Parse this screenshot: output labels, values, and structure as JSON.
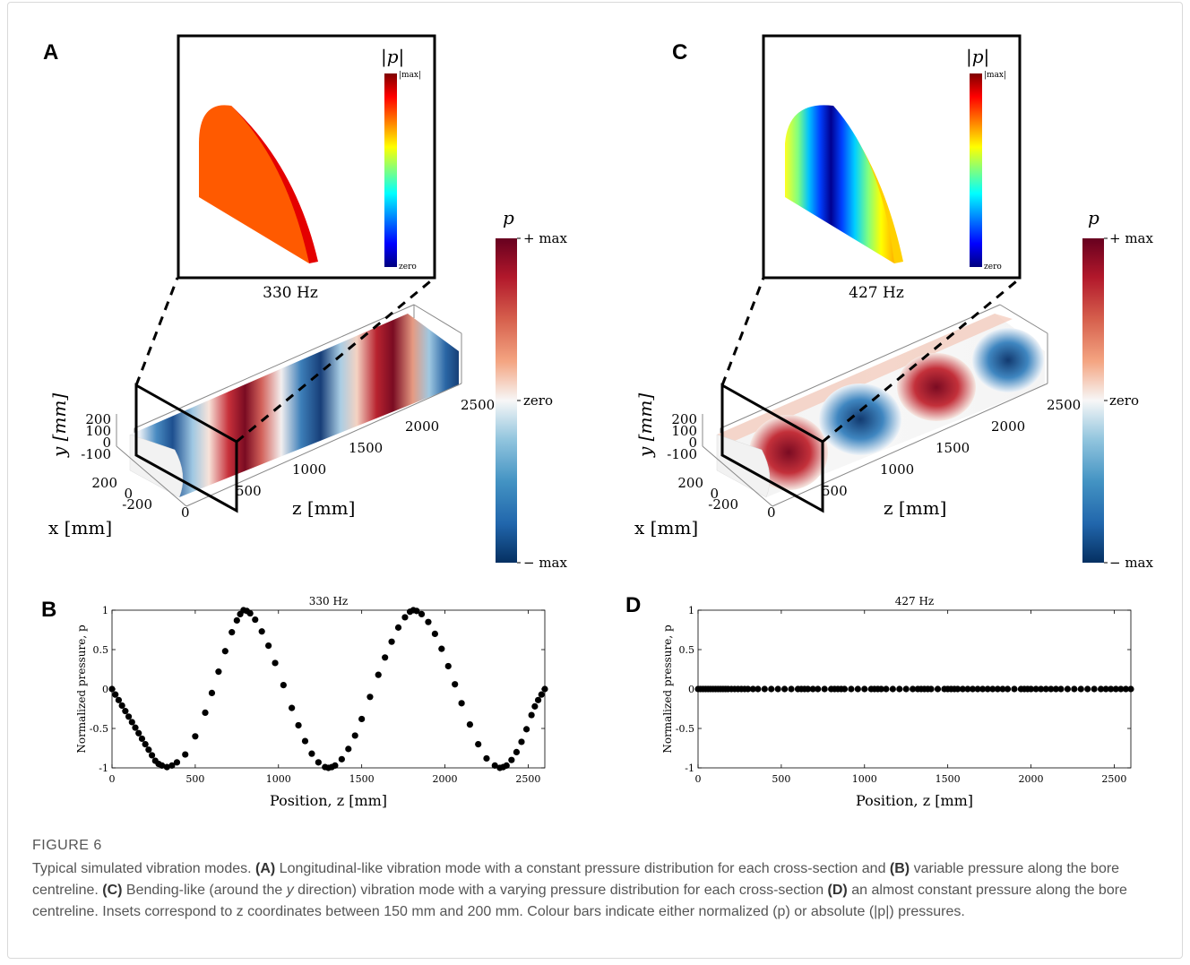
{
  "panel_letters": {
    "a": "A",
    "b": "B",
    "c": "C",
    "d": "D"
  },
  "inset_a": {
    "legend_title": "|p|",
    "legend_max": "|max|",
    "legend_min": "zero",
    "frequency": "330 Hz"
  },
  "inset_c": {
    "legend_title": "|p|",
    "legend_max": "|max|",
    "legend_min": "zero",
    "frequency": "427 Hz"
  },
  "model_axes": {
    "y_label": "y [mm]",
    "x_label": "x [mm]",
    "z_label": "z [mm]",
    "y_ticks": [
      "200",
      "100",
      "0",
      "-100"
    ],
    "x_ticks": [
      "200",
      "0",
      "-200"
    ],
    "z_ticks": [
      "0",
      "500",
      "1000",
      "1500",
      "2000",
      "2500"
    ]
  },
  "colorbar": {
    "title": "p",
    "max": "+ max",
    "mid": "zero",
    "min": "− max"
  },
  "colors": {
    "diverging": [
      "#053061",
      "#2166ac",
      "#4393c3",
      "#92c5de",
      "#f7f7f7",
      "#f4a582",
      "#d6604d",
      "#b2182b",
      "#67001f"
    ],
    "jet": [
      "#00007f",
      "#0000ff",
      "#007fff",
      "#00ffff",
      "#7fff7f",
      "#ffff00",
      "#ff7f00",
      "#ff0000",
      "#7f0000"
    ],
    "inset_a_fill": "#ff5a00"
  },
  "chart_data": [
    {
      "panel": "B",
      "type": "scatter",
      "title": "330 Hz",
      "xlabel": "Position, z [mm]",
      "ylabel": "Normalized pressure, p",
      "xlim": [
        0,
        2600
      ],
      "ylim": [
        -1,
        1
      ],
      "xticks": [
        0,
        500,
        1000,
        1500,
        2000,
        2500
      ],
      "yticks": [
        -1,
        -0.5,
        0,
        0.5,
        1
      ],
      "ytick_labels": [
        "-1",
        "-0.5",
        "0",
        "0.5",
        "1"
      ],
      "x": [
        0,
        20,
        40,
        60,
        80,
        100,
        120,
        140,
        160,
        180,
        200,
        220,
        240,
        260,
        280,
        300,
        330,
        360,
        390,
        440,
        500,
        560,
        600,
        640,
        680,
        720,
        750,
        770,
        790,
        810,
        830,
        860,
        900,
        940,
        980,
        1030,
        1080,
        1120,
        1160,
        1200,
        1240,
        1280,
        1300,
        1320,
        1340,
        1380,
        1420,
        1460,
        1500,
        1550,
        1600,
        1640,
        1680,
        1720,
        1760,
        1790,
        1810,
        1830,
        1860,
        1900,
        1940,
        1980,
        2020,
        2060,
        2100,
        2150,
        2200,
        2250,
        2300,
        2330,
        2350,
        2370,
        2400,
        2430,
        2460,
        2490,
        2520,
        2540,
        2560,
        2580,
        2600
      ],
      "y": [
        0,
        -0.07,
        -0.14,
        -0.21,
        -0.28,
        -0.35,
        -0.42,
        -0.49,
        -0.56,
        -0.63,
        -0.7,
        -0.77,
        -0.84,
        -0.91,
        -0.95,
        -0.97,
        -0.99,
        -0.97,
        -0.93,
        -0.83,
        -0.6,
        -0.3,
        -0.05,
        0.22,
        0.48,
        0.72,
        0.87,
        0.95,
        1.0,
        0.99,
        0.96,
        0.88,
        0.73,
        0.55,
        0.33,
        0.05,
        -0.24,
        -0.46,
        -0.66,
        -0.82,
        -0.93,
        -0.99,
        -1.0,
        -0.99,
        -0.97,
        -0.89,
        -0.76,
        -0.59,
        -0.38,
        -0.1,
        0.18,
        0.4,
        0.6,
        0.78,
        0.91,
        0.98,
        1.0,
        0.99,
        0.95,
        0.85,
        0.7,
        0.51,
        0.29,
        0.06,
        -0.18,
        -0.45,
        -0.7,
        -0.88,
        -0.97,
        -1.0,
        -0.99,
        -0.97,
        -0.9,
        -0.8,
        -0.67,
        -0.51,
        -0.33,
        -0.22,
        -0.14,
        -0.07,
        0.0
      ]
    },
    {
      "panel": "D",
      "type": "scatter",
      "title": "427 Hz",
      "xlabel": "Position, z [mm]",
      "ylabel": "Normalized pressure, p",
      "xlim": [
        0,
        2600
      ],
      "ylim": [
        -1,
        1
      ],
      "xticks": [
        0,
        500,
        1000,
        1500,
        2000,
        2500
      ],
      "yticks": [
        -1,
        -0.5,
        0,
        0.5,
        1
      ],
      "ytick_labels": [
        "-1",
        "-0.5",
        "0",
        "0.5",
        "1"
      ],
      "x": [
        0,
        15,
        30,
        45,
        60,
        75,
        90,
        105,
        120,
        135,
        150,
        165,
        180,
        200,
        220,
        240,
        260,
        280,
        300,
        330,
        360,
        400,
        440,
        480,
        520,
        560,
        600,
        620,
        640,
        660,
        690,
        720,
        760,
        800,
        820,
        840,
        860,
        880,
        920,
        960,
        1000,
        1040,
        1060,
        1080,
        1100,
        1130,
        1170,
        1210,
        1250,
        1290,
        1320,
        1340,
        1360,
        1380,
        1400,
        1440,
        1480,
        1500,
        1520,
        1540,
        1560,
        1590,
        1620,
        1650,
        1680,
        1710,
        1740,
        1770,
        1800,
        1830,
        1860,
        1900,
        1940,
        1960,
        1980,
        2000,
        2030,
        2060,
        2090,
        2120,
        2150,
        2180,
        2220,
        2260,
        2300,
        2340,
        2380,
        2420,
        2450,
        2480,
        2510,
        2540,
        2570,
        2600
      ],
      "y": [
        0,
        0,
        0,
        0,
        0,
        0,
        0,
        0,
        0,
        0,
        0,
        0,
        0,
        0,
        0,
        0,
        0,
        0,
        0,
        0,
        0,
        0,
        0,
        0,
        0,
        0,
        0,
        0,
        0,
        0,
        0,
        0,
        0,
        0,
        0,
        0,
        0,
        0,
        0,
        0,
        0,
        0,
        0,
        0,
        0,
        0,
        0,
        0,
        0,
        0,
        0,
        0,
        0,
        0,
        0,
        0,
        0,
        0,
        0,
        0,
        0,
        0,
        0,
        0,
        0,
        0,
        0,
        0,
        0,
        0,
        0,
        0,
        0,
        0,
        0,
        0,
        0,
        0,
        0,
        0,
        0,
        0,
        0,
        0,
        0,
        0,
        0,
        0,
        0,
        0,
        0,
        0,
        0,
        0
      ]
    }
  ],
  "figure_label": "FIGURE 6",
  "caption": {
    "p1": "Typical simulated vibration modes. ",
    "b1": "(A)",
    "p2": " Longitudinal-like vibration mode with a constant pressure distribution for each cross-section and ",
    "b2": "(B)",
    "p3": " variable pressure along the bore centreline. ",
    "b3": "(C)",
    "p4": " Bending-like (around the ",
    "i1": "y",
    "p5": " direction) vibration mode with a varying pressure distribution for each cross-section ",
    "b4": "(D)",
    "p6": " an almost constant pressure along the bore centreline. Insets correspond to z coordinates between 150 mm and 200 mm. Colour bars indicate either normalized (p) or absolute (|p|) pressures."
  }
}
